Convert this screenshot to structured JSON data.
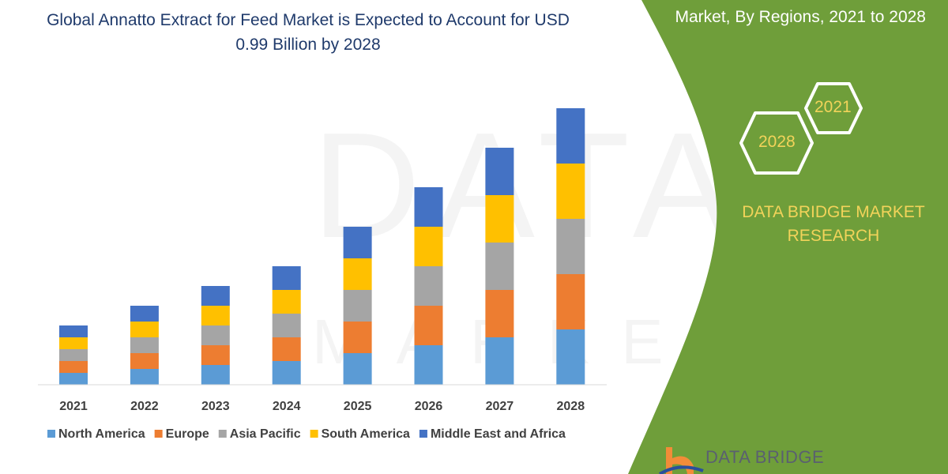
{
  "title": "Global Annatto Extract for Feed Market is Expected to Account for USD 0.99 Billion by 2028",
  "side_panel": {
    "subtitle": "Market, By Regions, 2021 to 2028",
    "hex_years": [
      "2021",
      "2028"
    ],
    "brand": "DATA BRIDGE MARKET RESEARCH",
    "logo_text": "DATA BRIDGE",
    "accent_color": "#6f9e3a"
  },
  "watermark": "DATA BRIDGE MARKET RESEARCH",
  "chart_data": {
    "type": "bar",
    "stacked": true,
    "title": "Global Annatto Extract for Feed Market is Expected to Account for USD 0.99 Billion by 2028",
    "xlabel": "",
    "ylabel": "",
    "y_axis_shown": false,
    "grid": false,
    "legend_position": "bottom",
    "categories": [
      "2021",
      "2022",
      "2023",
      "2024",
      "2025",
      "2026",
      "2027",
      "2028"
    ],
    "series": [
      {
        "name": "North America",
        "color": "#5b9bd5",
        "values": [
          1.5,
          2,
          2.5,
          3,
          4,
          5,
          6,
          7
        ]
      },
      {
        "name": "Europe",
        "color": "#ed7d31",
        "values": [
          1.5,
          2,
          2.5,
          3,
          4,
          5,
          6,
          7
        ]
      },
      {
        "name": "Asia Pacific",
        "color": "#a5a5a5",
        "values": [
          1.5,
          2,
          2.5,
          3,
          4,
          5,
          6,
          7
        ]
      },
      {
        "name": "South America",
        "color": "#ffc000",
        "values": [
          1.5,
          2,
          2.5,
          3,
          4,
          5,
          6,
          7
        ]
      },
      {
        "name": "Middle East and Africa",
        "color": "#4472c4",
        "values": [
          1.5,
          2,
          2.5,
          3,
          4,
          5,
          6,
          7
        ]
      }
    ]
  }
}
